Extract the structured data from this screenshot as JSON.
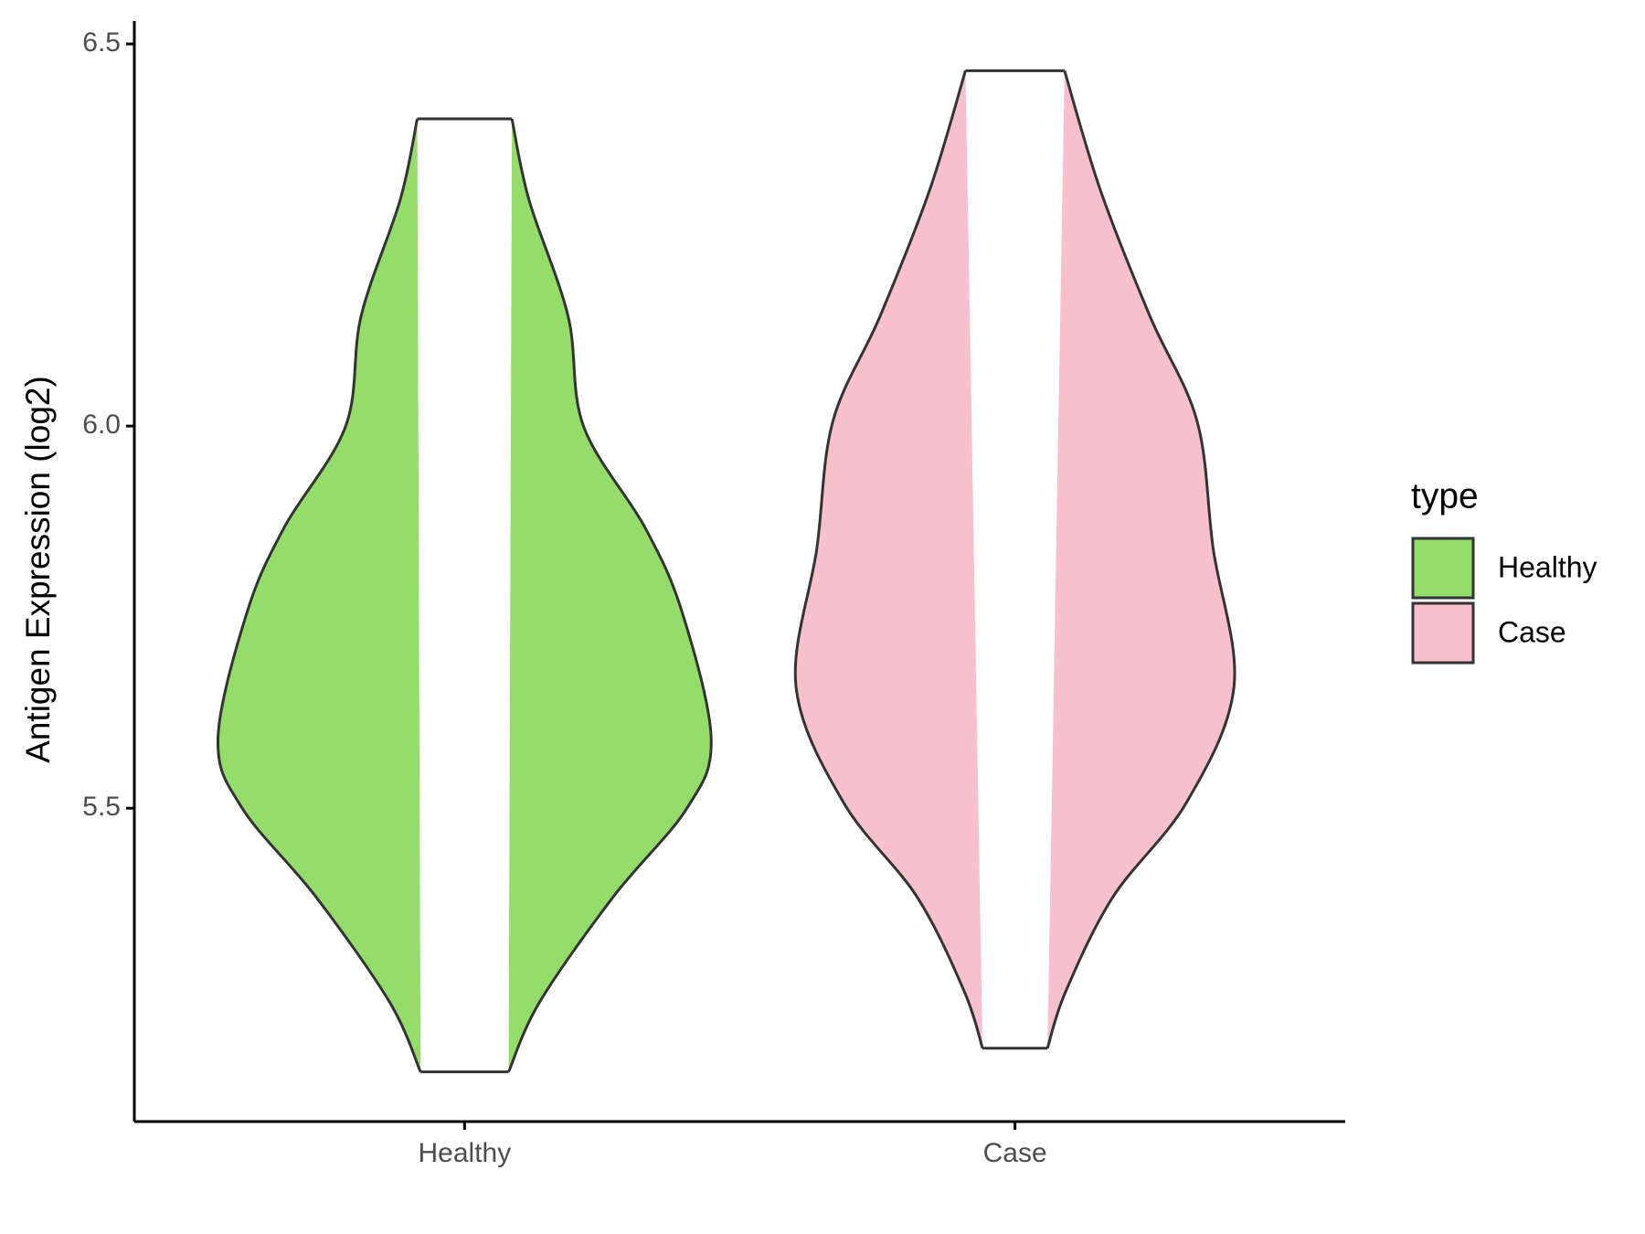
{
  "chart_data": {
    "type": "violin",
    "y_label": "Antigen Expression (log2)",
    "categories": [
      "Healthy",
      "Case"
    ],
    "legend_title": "type",
    "legend": "right",
    "series": [
      {
        "name": "Healthy",
        "color": "#95dd6b",
        "y": [
          6.402,
          6.296,
          6.144,
          6.0,
          5.867,
          5.757,
          5.591,
          5.5,
          5.384,
          5.246,
          5.155
        ],
        "width": [
          0.086,
          0.117,
          0.188,
          0.216,
          0.328,
          0.395,
          0.448,
          0.404,
          0.27,
          0.136,
          0.08
        ]
      },
      {
        "name": "Case",
        "color": "#f7c0cb",
        "y": [
          6.465,
          6.309,
          6.144,
          6.006,
          5.84,
          5.66,
          5.508,
          5.384,
          5.26,
          5.186
        ],
        "width": [
          0.09,
          0.155,
          0.245,
          0.331,
          0.36,
          0.398,
          0.312,
          0.178,
          0.092,
          0.059
        ]
      }
    ],
    "ylim": [
      5.09,
      6.53
    ],
    "yticks": [
      5.5,
      {
        "value": 6,
        "label": "6.0"
      },
      6.5
    ]
  }
}
